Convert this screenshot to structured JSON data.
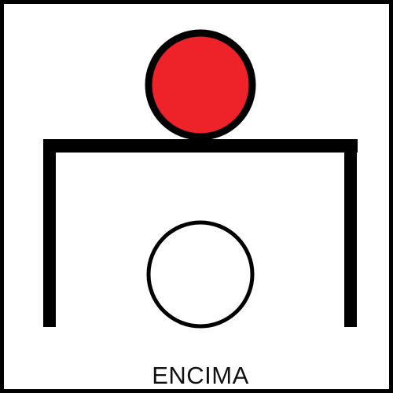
{
  "card": {
    "caption": "ENCIMA",
    "colors": {
      "border": "#000000",
      "table": "#000000",
      "top_ball_fill": "#ee2229",
      "top_ball_outline": "#000000",
      "bottom_ball_fill": "#ffffff",
      "bottom_ball_outline": "#000000",
      "background": "#ffffff"
    },
    "icons": [
      "table-icon",
      "ball-on-top-icon",
      "ball-under-icon"
    ]
  }
}
